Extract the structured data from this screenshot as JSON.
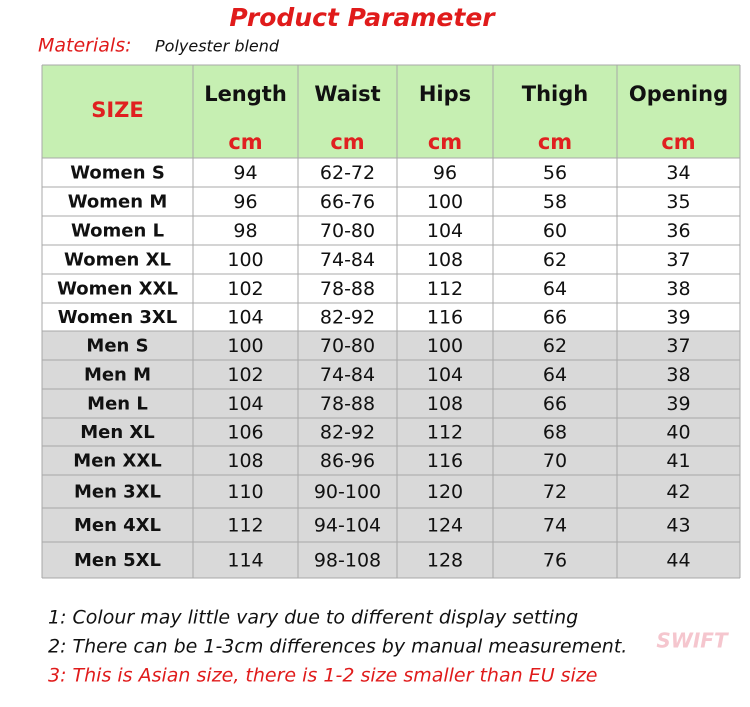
{
  "header": {
    "title": "Product Parameter",
    "materials_label": "Materials:",
    "materials_value": "Polyester blend"
  },
  "table": {
    "size_label": "SIZE",
    "columns": [
      {
        "name": "Length",
        "unit": "cm"
      },
      {
        "name": "Waist",
        "unit": "cm"
      },
      {
        "name": "Hips",
        "unit": "cm"
      },
      {
        "name": "Thigh",
        "unit": "cm"
      },
      {
        "name": "Opening",
        "unit": "cm"
      }
    ],
    "rows": [
      [
        "Women S",
        94,
        "62-72",
        96,
        56,
        34
      ],
      [
        "Women M",
        96,
        "66-76",
        100,
        58,
        35
      ],
      [
        "Women L",
        98,
        "70-80",
        104,
        60,
        36
      ],
      [
        "Women XL",
        100,
        "74-84",
        108,
        62,
        37
      ],
      [
        "Women XXL",
        102,
        "78-88",
        112,
        64,
        38
      ],
      [
        "Women 3XL",
        104,
        "82-92",
        116,
        66,
        39
      ],
      [
        "Men S",
        100,
        "70-80",
        100,
        62,
        37
      ],
      [
        "Men M",
        102,
        "74-84",
        104,
        64,
        38
      ],
      [
        "Men L",
        104,
        "78-88",
        108,
        66,
        39
      ],
      [
        "Men XL",
        106,
        "82-92",
        112,
        68,
        40
      ],
      [
        "Men XXL",
        108,
        "86-96",
        116,
        70,
        41
      ],
      [
        "Men 3XL",
        110,
        "90-100",
        120,
        72,
        42
      ],
      [
        "Men 4XL",
        112,
        "94-104",
        124,
        74,
        43
      ],
      [
        "Men 5XL",
        114,
        "98-108",
        128,
        76,
        44
      ]
    ]
  },
  "notes": [
    "1: Colour may little vary due to different display setting",
    "2: There can be 1-3cm differences by manual measurement.",
    "3: This is Asian size, there is 1-2 size smaller than EU size"
  ],
  "watermark": "SWIFT"
}
